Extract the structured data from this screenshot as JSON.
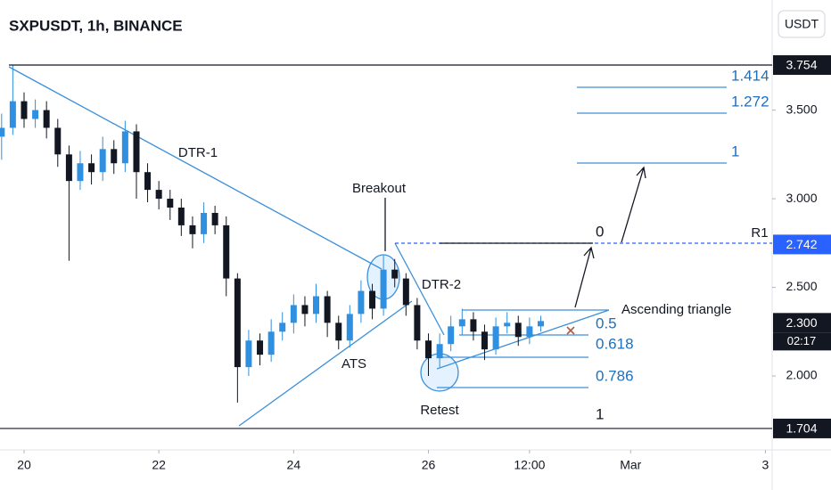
{
  "header": {
    "title": "SXPUSDT, 1h, BINANCE",
    "currency": "USDT"
  },
  "chart_data": {
    "type": "candlestick",
    "x": [
      19.667,
      19.833,
      20,
      20.167,
      20.333,
      20.5,
      20.667,
      20.833,
      21,
      21.167,
      21.333,
      21.5,
      21.667,
      21.833,
      22,
      22.167,
      22.333,
      22.5,
      22.667,
      22.833,
      23,
      23.167,
      23.333,
      23.5,
      23.667,
      23.833,
      24,
      24.167,
      24.333,
      24.5,
      24.667,
      24.833,
      25,
      25.167,
      25.333,
      25.5,
      25.667,
      25.833,
      26,
      26.167,
      26.333,
      26.5,
      26.667,
      26.833,
      27,
      27.167,
      27.333,
      27.5,
      27.667
    ],
    "open": [
      3.35,
      3.4,
      3.55,
      3.45,
      3.5,
      3.4,
      3.25,
      3.1,
      3.2,
      3.15,
      3.28,
      3.2,
      3.38,
      3.15,
      3.05,
      3.0,
      2.95,
      2.85,
      2.8,
      2.92,
      2.85,
      2.55,
      2.05,
      2.2,
      2.12,
      2.25,
      2.3,
      2.4,
      2.35,
      2.45,
      2.3,
      2.2,
      2.35,
      2.48,
      2.38,
      2.6,
      2.55,
      2.4,
      2.2,
      2.1,
      2.18,
      2.28,
      2.32,
      2.25,
      2.15,
      2.28,
      2.3,
      2.22,
      2.28
    ],
    "high": [
      3.48,
      3.754,
      3.6,
      3.56,
      3.55,
      3.45,
      3.3,
      3.27,
      3.25,
      3.35,
      3.33,
      3.44,
      3.42,
      3.2,
      3.1,
      3.05,
      3.0,
      2.9,
      2.98,
      2.96,
      2.9,
      2.58,
      2.26,
      2.24,
      2.32,
      2.36,
      2.46,
      2.45,
      2.52,
      2.48,
      2.34,
      2.4,
      2.54,
      2.52,
      2.68,
      2.66,
      2.58,
      2.44,
      2.24,
      2.24,
      2.34,
      2.38,
      2.36,
      2.29,
      2.33,
      2.36,
      2.34,
      2.33,
      2.34
    ],
    "low": [
      3.22,
      3.36,
      3.4,
      3.4,
      3.34,
      3.18,
      2.65,
      3.05,
      3.08,
      3.1,
      3.14,
      3.15,
      3.0,
      2.98,
      2.94,
      2.88,
      2.79,
      2.72,
      2.75,
      2.8,
      2.45,
      1.85,
      2.0,
      2.06,
      2.08,
      2.2,
      2.24,
      2.28,
      2.3,
      2.22,
      2.15,
      2.16,
      2.3,
      2.32,
      2.34,
      2.5,
      2.34,
      2.15,
      2.0,
      2.05,
      2.14,
      2.23,
      2.2,
      2.09,
      2.12,
      2.24,
      2.17,
      2.18,
      2.25
    ],
    "close": [
      3.4,
      3.55,
      3.45,
      3.5,
      3.4,
      3.25,
      3.1,
      3.2,
      3.15,
      3.28,
      3.2,
      3.38,
      3.15,
      3.05,
      3.0,
      2.95,
      2.85,
      2.8,
      2.92,
      2.85,
      2.55,
      2.05,
      2.2,
      2.12,
      2.25,
      2.3,
      2.4,
      2.35,
      2.45,
      2.3,
      2.2,
      2.35,
      2.48,
      2.38,
      2.6,
      2.55,
      2.4,
      2.2,
      2.1,
      2.18,
      2.28,
      2.32,
      2.25,
      2.15,
      2.28,
      2.3,
      2.22,
      2.28,
      2.31
    ],
    "up_color": "#2f8fe0",
    "down_color": "#131722",
    "xlim": [
      19.643,
      31.1
    ],
    "xticks": [
      20,
      22,
      24,
      26,
      {
        "value": 27.5,
        "label": "12:00"
      },
      {
        "value": 29,
        "label": "Mar"
      },
      {
        "value": 31,
        "label": "3"
      }
    ],
    "ylim": [
      1.583,
      4.121
    ],
    "yticks": [
      {
        "value": 3.5,
        "label": "3.500"
      },
      {
        "value": 3.0,
        "label": "3.000"
      },
      {
        "value": 2.5,
        "label": "2.500"
      },
      {
        "value": 2.0,
        "label": "2.000"
      }
    ],
    "price_markers": [
      3.754,
      2.742,
      {
        "value": 2.3,
        "label": "2.300"
      },
      1.704
    ],
    "marker_colors": [
      "#131722",
      "#2962ff",
      "#131722",
      "#131722"
    ],
    "countdown": "02:17",
    "annotations": [
      "DTR-1",
      "Breakout",
      "DTR-2",
      "ATS",
      "Retest",
      "Ascending triangle",
      "R1"
    ],
    "fib_labels": [
      "1.414",
      "1.272",
      "1",
      "0",
      "0.5",
      "0.618",
      "0.786",
      "1"
    ]
  }
}
